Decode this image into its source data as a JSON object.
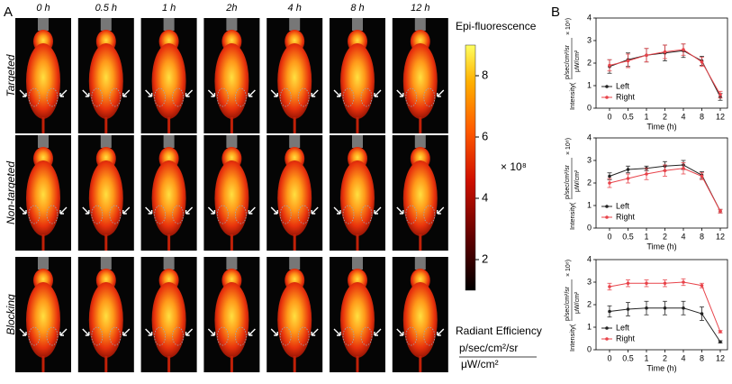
{
  "panel_a": {
    "label": "A",
    "columns": [
      "0 h",
      "0.5 h",
      "1 h",
      "2h",
      "4 h",
      "8 h",
      "12 h"
    ],
    "rows": [
      "Targeted",
      "Non-targeted",
      "Blocking"
    ],
    "colorbar": {
      "title": "Epi-fluorescence",
      "multiplier": "× 10⁸",
      "lim": [
        1,
        9
      ],
      "ticks": [
        2,
        4,
        6,
        8
      ],
      "unit_title": "Radiant Efficiency",
      "unit_numerator": "p/sec/cm²/sr",
      "unit_denominator": "μW/cm²"
    }
  },
  "panel_b": {
    "label": "B"
  },
  "chart_data": [
    {
      "type": "line",
      "categories": [
        "0",
        "0.5",
        "1",
        "2",
        "4",
        "8",
        "12"
      ],
      "x_label": "Time (h)",
      "y_label": "Intensity(",
      "y_unit_numerator": "p/sec/cm²/sr",
      "y_unit_denominator": "μW/cm²",
      "y_label_end": "× 10⁸)",
      "ylim": [
        0,
        4
      ],
      "yticks": [
        0,
        1,
        2,
        3,
        4
      ],
      "legend": "lower left",
      "series": [
        {
          "name": "Left",
          "color": "#222222",
          "values": [
            1.85,
            2.15,
            2.35,
            2.45,
            2.55,
            2.1,
            0.5
          ],
          "errors": [
            0.3,
            0.3,
            0.3,
            0.35,
            0.3,
            0.2,
            0.15
          ]
        },
        {
          "name": "Right",
          "color": "#e8434a",
          "values": [
            1.9,
            2.1,
            2.35,
            2.5,
            2.6,
            2.05,
            0.6
          ],
          "errors": [
            0.25,
            0.3,
            0.3,
            0.3,
            0.25,
            0.2,
            0.15
          ]
        }
      ]
    },
    {
      "type": "line",
      "categories": [
        "0",
        "0.5",
        "1",
        "2",
        "4",
        "8",
        "12"
      ],
      "x_label": "Time (h)",
      "y_label": "Intensity(",
      "y_unit_numerator": "p/sec/cm²/sr",
      "y_unit_denominator": "μW/cm²",
      "y_label_end": "× 10⁸)",
      "ylim": [
        0,
        4
      ],
      "yticks": [
        0,
        1,
        2,
        3,
        4
      ],
      "legend": "lower left",
      "series": [
        {
          "name": "Left",
          "color": "#222222",
          "values": [
            2.3,
            2.6,
            2.65,
            2.75,
            2.8,
            2.35,
            0.75
          ],
          "errors": [
            0.15,
            0.15,
            0.1,
            0.2,
            0.2,
            0.15,
            0.08
          ]
        },
        {
          "name": "Right",
          "color": "#e8434a",
          "values": [
            2.0,
            2.2,
            2.4,
            2.55,
            2.65,
            2.3,
            0.75
          ],
          "errors": [
            0.2,
            0.2,
            0.25,
            0.25,
            0.25,
            0.15,
            0.08
          ]
        }
      ]
    },
    {
      "type": "line",
      "categories": [
        "0",
        "0.5",
        "1",
        "2",
        "4",
        "8",
        "12"
      ],
      "x_label": "Time (h)",
      "y_label": "Intensity(",
      "y_unit_numerator": "p/sec/cm²/sr",
      "y_unit_denominator": "μW/cm²",
      "y_label_end": "× 10⁸)",
      "ylim": [
        0,
        4
      ],
      "yticks": [
        0,
        1,
        2,
        3,
        4
      ],
      "legend": "lower left",
      "series": [
        {
          "name": "Left",
          "color": "#222222",
          "values": [
            1.7,
            1.8,
            1.85,
            1.85,
            1.85,
            1.6,
            0.35
          ],
          "errors": [
            0.25,
            0.3,
            0.3,
            0.3,
            0.3,
            0.3,
            0.05
          ]
        },
        {
          "name": "Right",
          "color": "#e8434a",
          "values": [
            2.8,
            2.95,
            2.95,
            2.95,
            3.0,
            2.85,
            0.8
          ],
          "errors": [
            0.15,
            0.15,
            0.15,
            0.15,
            0.15,
            0.1,
            0.05
          ]
        }
      ]
    }
  ]
}
